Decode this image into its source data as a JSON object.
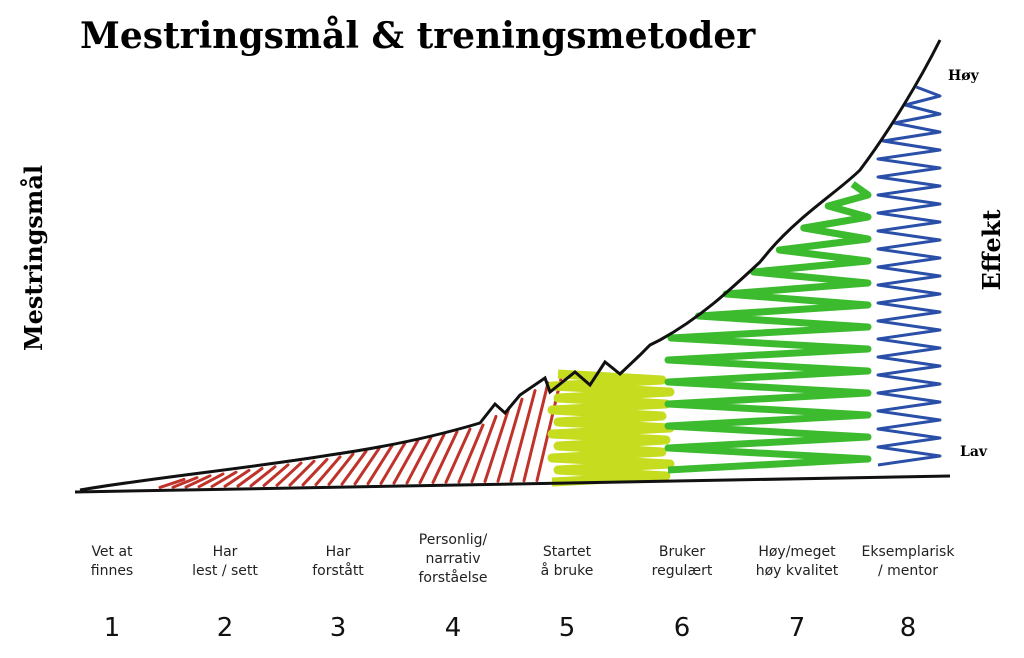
{
  "title": "Mestringsmål & treningsmetoder",
  "left_axis_label": "Mestringsmål",
  "right_axis_label": "Effekt",
  "right_axis_high": "Høy",
  "right_axis_low": "Lav",
  "stages": [
    {
      "lines": [
        "Vet at",
        "finnes"
      ],
      "number": "1"
    },
    {
      "lines": [
        "Har",
        "lest / sett"
      ],
      "number": "2"
    },
    {
      "lines": [
        "Har",
        "forstått"
      ],
      "number": "3"
    },
    {
      "lines": [
        "Personlig/",
        "narrativ",
        "forståelse"
      ],
      "number": "4"
    },
    {
      "lines": [
        "Startet",
        "å bruke"
      ],
      "number": "5"
    },
    {
      "lines": [
        "Bruker",
        "regulært"
      ],
      "number": "6"
    },
    {
      "lines": [
        "Høy/meget",
        "høy kvalitet"
      ],
      "number": "7"
    },
    {
      "lines": [
        "Eksemplarisk",
        "/ mentor"
      ],
      "number": "8"
    }
  ]
}
